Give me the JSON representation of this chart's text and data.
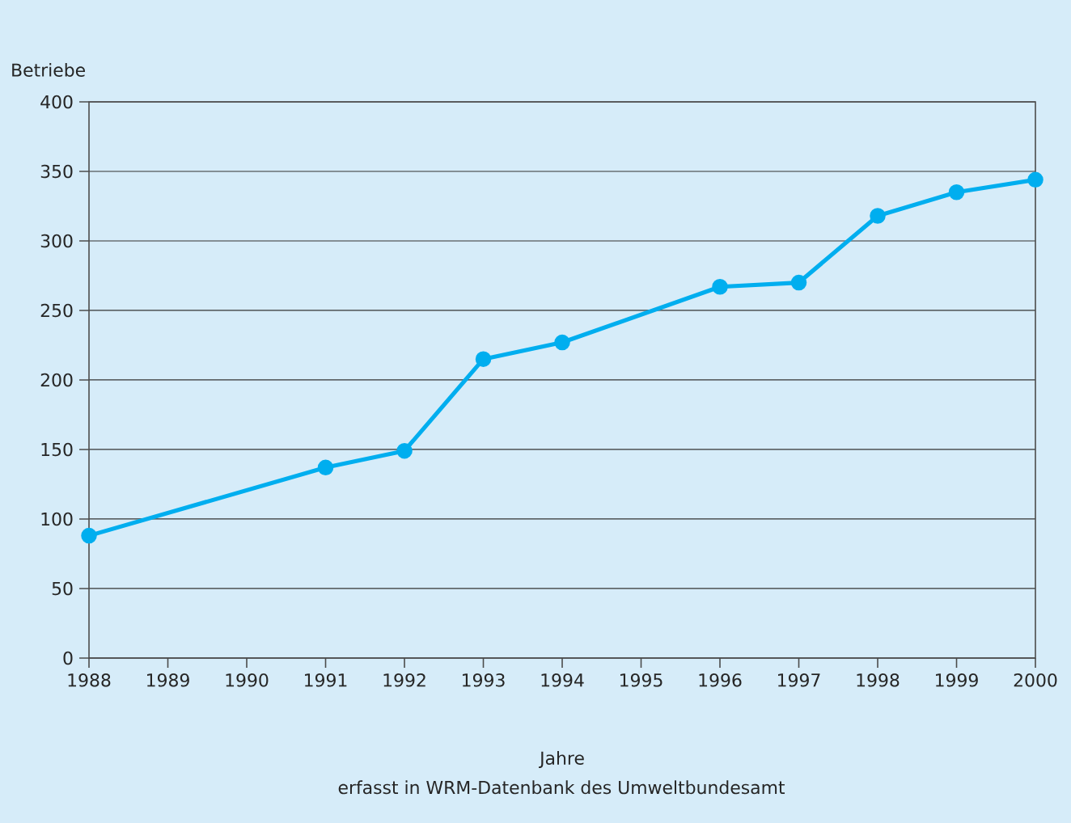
{
  "chart_data": {
    "type": "line",
    "ylabel": "Betriebe",
    "xlabel": "Jahre",
    "annotations": [
      "erfasst in WRM-Datenbank des Umweltbundesamt"
    ],
    "x": [
      1988,
      1991,
      1992,
      1993,
      1994,
      1996,
      1997,
      1998,
      1999,
      2000
    ],
    "series": [
      {
        "color": "#00aeef",
        "values": [
          88,
          137,
          149,
          215,
          227,
          267,
          270,
          318,
          335,
          344
        ]
      }
    ],
    "xlim": [
      1988,
      2000
    ],
    "xticks": [
      1988,
      1989,
      1990,
      1991,
      1992,
      1993,
      1994,
      1995,
      1996,
      1997,
      1998,
      1999,
      2000
    ],
    "ylim": [
      0,
      400
    ],
    "yticks": [
      0,
      50,
      100,
      150,
      200,
      250,
      300,
      350,
      400
    ],
    "grid": "y",
    "marker": "circle",
    "line_style": "solid"
  }
}
